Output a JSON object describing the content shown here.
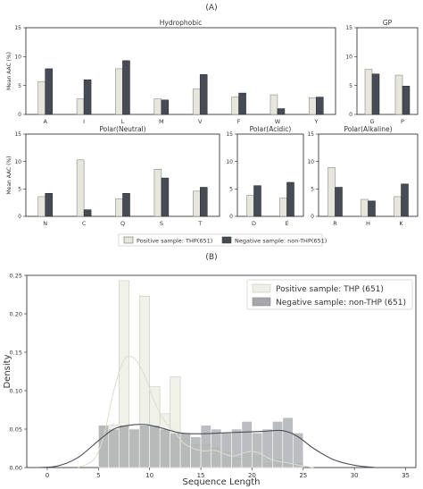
{
  "figure": {
    "label_a": "(A)",
    "label_b": "(B)",
    "legend_a": {
      "positive": "Positive sample: THP(651)",
      "negative": "Negative sample: non-THP(651)"
    }
  },
  "colors": {
    "positive_bar": "#e7e6dc",
    "negative_bar": "#474b55",
    "positive_hist": "#eeefe6",
    "negative_hist": "#a6a7ab",
    "positive_kde": "#dcdcd2",
    "negative_kde": "#4b4f58"
  },
  "chart_data": [
    {
      "type": "bar",
      "title": "Hydrophobic",
      "ylabel": "Mean AAC (%)",
      "ylim": [
        0,
        15
      ],
      "yticks": [
        0,
        5,
        10,
        15
      ],
      "categories": [
        "A",
        "I",
        "L",
        "M",
        "V",
        "F",
        "W",
        "Y"
      ],
      "series": [
        {
          "name": "Positive sample: THP(651)",
          "values": [
            5.7,
            2.7,
            7.9,
            2.7,
            4.4,
            3.0,
            3.4,
            2.9
          ]
        },
        {
          "name": "Negative sample: non-THP(651)",
          "values": [
            7.9,
            6.0,
            9.3,
            2.5,
            6.9,
            3.7,
            1.0,
            3.0
          ]
        }
      ]
    },
    {
      "type": "bar",
      "title": "GP",
      "ylabel": "",
      "ylim": [
        0,
        15
      ],
      "yticks": [
        0,
        5,
        10,
        15
      ],
      "categories": [
        "G",
        "P"
      ],
      "series": [
        {
          "name": "Positive sample: THP(651)",
          "values": [
            7.8,
            6.8
          ]
        },
        {
          "name": "Negative sample: non-THP(651)",
          "values": [
            7.0,
            4.9
          ]
        }
      ]
    },
    {
      "type": "bar",
      "title": "Polar(Neutral)",
      "ylabel": "Mean AAC (%)",
      "ylim": [
        0,
        15
      ],
      "yticks": [
        0,
        5,
        10,
        15
      ],
      "categories": [
        "N",
        "C",
        "Q",
        "S",
        "T"
      ],
      "series": [
        {
          "name": "Positive sample: THP(651)",
          "values": [
            3.6,
            10.3,
            3.2,
            8.6,
            4.6
          ]
        },
        {
          "name": "Negative sample: non-THP(651)",
          "values": [
            4.2,
            1.2,
            4.2,
            7.0,
            5.3
          ]
        }
      ]
    },
    {
      "type": "bar",
      "title": "Polar(Acidic)",
      "ylabel": "",
      "ylim": [
        0,
        15
      ],
      "yticks": [
        0,
        5,
        10,
        15
      ],
      "categories": [
        "D",
        "E"
      ],
      "series": [
        {
          "name": "Positive sample: THP(651)",
          "values": [
            3.8,
            3.3
          ]
        },
        {
          "name": "Negative sample: non-THP(651)",
          "values": [
            5.6,
            6.2
          ]
        }
      ]
    },
    {
      "type": "bar",
      "title": "Polar(Alkaline)",
      "ylabel": "",
      "ylim": [
        0,
        15
      ],
      "yticks": [
        0,
        5,
        10,
        15
      ],
      "categories": [
        "R",
        "H",
        "K"
      ],
      "series": [
        {
          "name": "Positive sample: THP(651)",
          "values": [
            8.9,
            3.1,
            3.6
          ]
        },
        {
          "name": "Negative sample: non-THP(651)",
          "values": [
            5.3,
            2.8,
            5.9
          ]
        }
      ]
    },
    {
      "type": "histogram",
      "xlabel": "Sequence Length",
      "ylabel": "Density",
      "xlim": [
        -2,
        36
      ],
      "ylim": [
        0,
        0.25
      ],
      "xticks": [
        0,
        5,
        10,
        15,
        20,
        25,
        30,
        35
      ],
      "yticks": [
        0.0,
        0.05,
        0.1,
        0.15,
        0.2,
        0.25
      ],
      "ytick_labels": [
        "0.00",
        "0.05",
        "0.10",
        "0.15",
        "0.20",
        "0.25"
      ],
      "legend_position": "top-right",
      "bin_edges": [
        5,
        6,
        7,
        8,
        9,
        10,
        11,
        12,
        13,
        14,
        15,
        16,
        17,
        18,
        19,
        20,
        21,
        22,
        23,
        24,
        25
      ],
      "series": [
        {
          "name": "Positive sample: THP (651)",
          "counts": [
            0.055,
            0.055,
            0.243,
            0.05,
            0.223,
            0.105,
            0.07,
            0.118,
            0.045,
            0.03,
            0.03,
            0.025,
            0.02,
            0.012,
            0.02,
            0.015,
            0.005,
            0.01,
            0.005,
            0.005
          ],
          "kde": [
            [
              3,
              0.0
            ],
            [
              4.5,
              0.01
            ],
            [
              5.5,
              0.04
            ],
            [
              6.5,
              0.1
            ],
            [
              7.5,
              0.14
            ],
            [
              8.5,
              0.142
            ],
            [
              9.5,
              0.12
            ],
            [
              10.5,
              0.085
            ],
            [
              11.5,
              0.06
            ],
            [
              12.5,
              0.045
            ],
            [
              13.5,
              0.03
            ],
            [
              15,
              0.022
            ],
            [
              16.5,
              0.022
            ],
            [
              18,
              0.015
            ],
            [
              19.5,
              0.02
            ],
            [
              20.5,
              0.02
            ],
            [
              22,
              0.01
            ],
            [
              23.5,
              0.006
            ],
            [
              25,
              0.002
            ],
            [
              26,
              0.0
            ]
          ]
        },
        {
          "name": "Negative sample: non-THP (651)",
          "counts": [
            0.055,
            0.05,
            0.055,
            0.05,
            0.055,
            0.055,
            0.05,
            0.045,
            0.045,
            0.04,
            0.055,
            0.05,
            0.045,
            0.05,
            0.06,
            0.045,
            0.05,
            0.06,
            0.065,
            0.045
          ],
          "kde": [
            [
              -1,
              0.0
            ],
            [
              1,
              0.002
            ],
            [
              3,
              0.013
            ],
            [
              5,
              0.035
            ],
            [
              6.5,
              0.05
            ],
            [
              8,
              0.055
            ],
            [
              9.5,
              0.056
            ],
            [
              11,
              0.052
            ],
            [
              13,
              0.045
            ],
            [
              15,
              0.044
            ],
            [
              17,
              0.045
            ],
            [
              19,
              0.046
            ],
            [
              21,
              0.047
            ],
            [
              23,
              0.048
            ],
            [
              24.5,
              0.04
            ],
            [
              26,
              0.025
            ],
            [
              28,
              0.01
            ],
            [
              30,
              0.003
            ],
            [
              32,
              0.0
            ]
          ]
        }
      ]
    }
  ]
}
